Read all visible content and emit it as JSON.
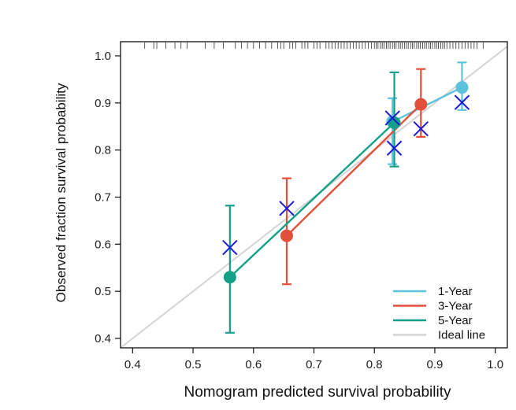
{
  "chart_data": {
    "type": "scatter",
    "title": "",
    "xlabel": "Nomogram predicted survival probability",
    "ylabel": "Observed fraction survival probability",
    "xlim": [
      0.38,
      1.02
    ],
    "ylim": [
      0.38,
      1.03
    ],
    "xticks": [
      0.4,
      0.5,
      0.6,
      0.7,
      0.8,
      0.9,
      1.0
    ],
    "xtick_labels": [
      "0.4",
      "0.5",
      "0.6",
      "0.7",
      "0.8",
      "0.9",
      "1.0"
    ],
    "yticks": [
      0.4,
      0.5,
      0.6,
      0.7,
      0.8,
      0.9,
      1.0
    ],
    "ytick_labels": [
      "0.4",
      "0.5",
      "0.6",
      "0.7",
      "0.8",
      "0.9",
      "1.0"
    ],
    "grid": false,
    "legend_position": "bottom-right",
    "ideal_line": {
      "name": "Ideal line",
      "color": "#d4d4d4",
      "from": [
        0.38,
        0.38
      ],
      "to": [
        1.02,
        1.02
      ]
    },
    "series": [
      {
        "name": "1-Year",
        "color": "#5bc3dc",
        "points": [
          {
            "x": 0.83,
            "y": 0.86,
            "lo": 0.77,
            "hi": 0.91
          },
          {
            "x": 0.945,
            "y": 0.933,
            "lo": 0.885,
            "hi": 0.986
          }
        ]
      },
      {
        "name": "3-Year",
        "color": "#e2503c",
        "points": [
          {
            "x": 0.655,
            "y": 0.618,
            "lo": 0.515,
            "hi": 0.74
          },
          {
            "x": 0.877,
            "y": 0.897,
            "lo": 0.828,
            "hi": 0.972
          }
        ]
      },
      {
        "name": "5-Year",
        "color": "#14a088",
        "points": [
          {
            "x": 0.561,
            "y": 0.53,
            "lo": 0.412,
            "hi": 0.682
          },
          {
            "x": 0.833,
            "y": 0.858,
            "lo": 0.765,
            "hi": 0.965
          }
        ]
      }
    ],
    "bias_corrected": {
      "marker": "x",
      "color": "#1a1ad6",
      "points": [
        {
          "x": 0.561,
          "y": 0.593
        },
        {
          "x": 0.655,
          "y": 0.676
        },
        {
          "x": 0.83,
          "y": 0.868
        },
        {
          "x": 0.833,
          "y": 0.804
        },
        {
          "x": 0.877,
          "y": 0.845
        },
        {
          "x": 0.945,
          "y": 0.901
        }
      ]
    },
    "rug": {
      "color": "#333333",
      "x": [
        0.42,
        0.435,
        0.44,
        0.455,
        0.47,
        0.48,
        0.49,
        0.52,
        0.535,
        0.55,
        0.57,
        0.58,
        0.59,
        0.6,
        0.61,
        0.62,
        0.63,
        0.64,
        0.645,
        0.65,
        0.66,
        0.665,
        0.67,
        0.68,
        0.685,
        0.69,
        0.7,
        0.705,
        0.71,
        0.72,
        0.725,
        0.73,
        0.735,
        0.74,
        0.745,
        0.75,
        0.755,
        0.76,
        0.765,
        0.77,
        0.775,
        0.78,
        0.785,
        0.79,
        0.795,
        0.8,
        0.803,
        0.806,
        0.81,
        0.813,
        0.816,
        0.82,
        0.823,
        0.826,
        0.83,
        0.833,
        0.836,
        0.84,
        0.843,
        0.846,
        0.85,
        0.853,
        0.856,
        0.86,
        0.863,
        0.866,
        0.87,
        0.873,
        0.876,
        0.88,
        0.883,
        0.886,
        0.89,
        0.893,
        0.896,
        0.9,
        0.903,
        0.906,
        0.91,
        0.913,
        0.916,
        0.92,
        0.925,
        0.93,
        0.935,
        0.94,
        0.945,
        0.95,
        0.955,
        0.96,
        0.965,
        0.97,
        0.98
      ]
    }
  }
}
